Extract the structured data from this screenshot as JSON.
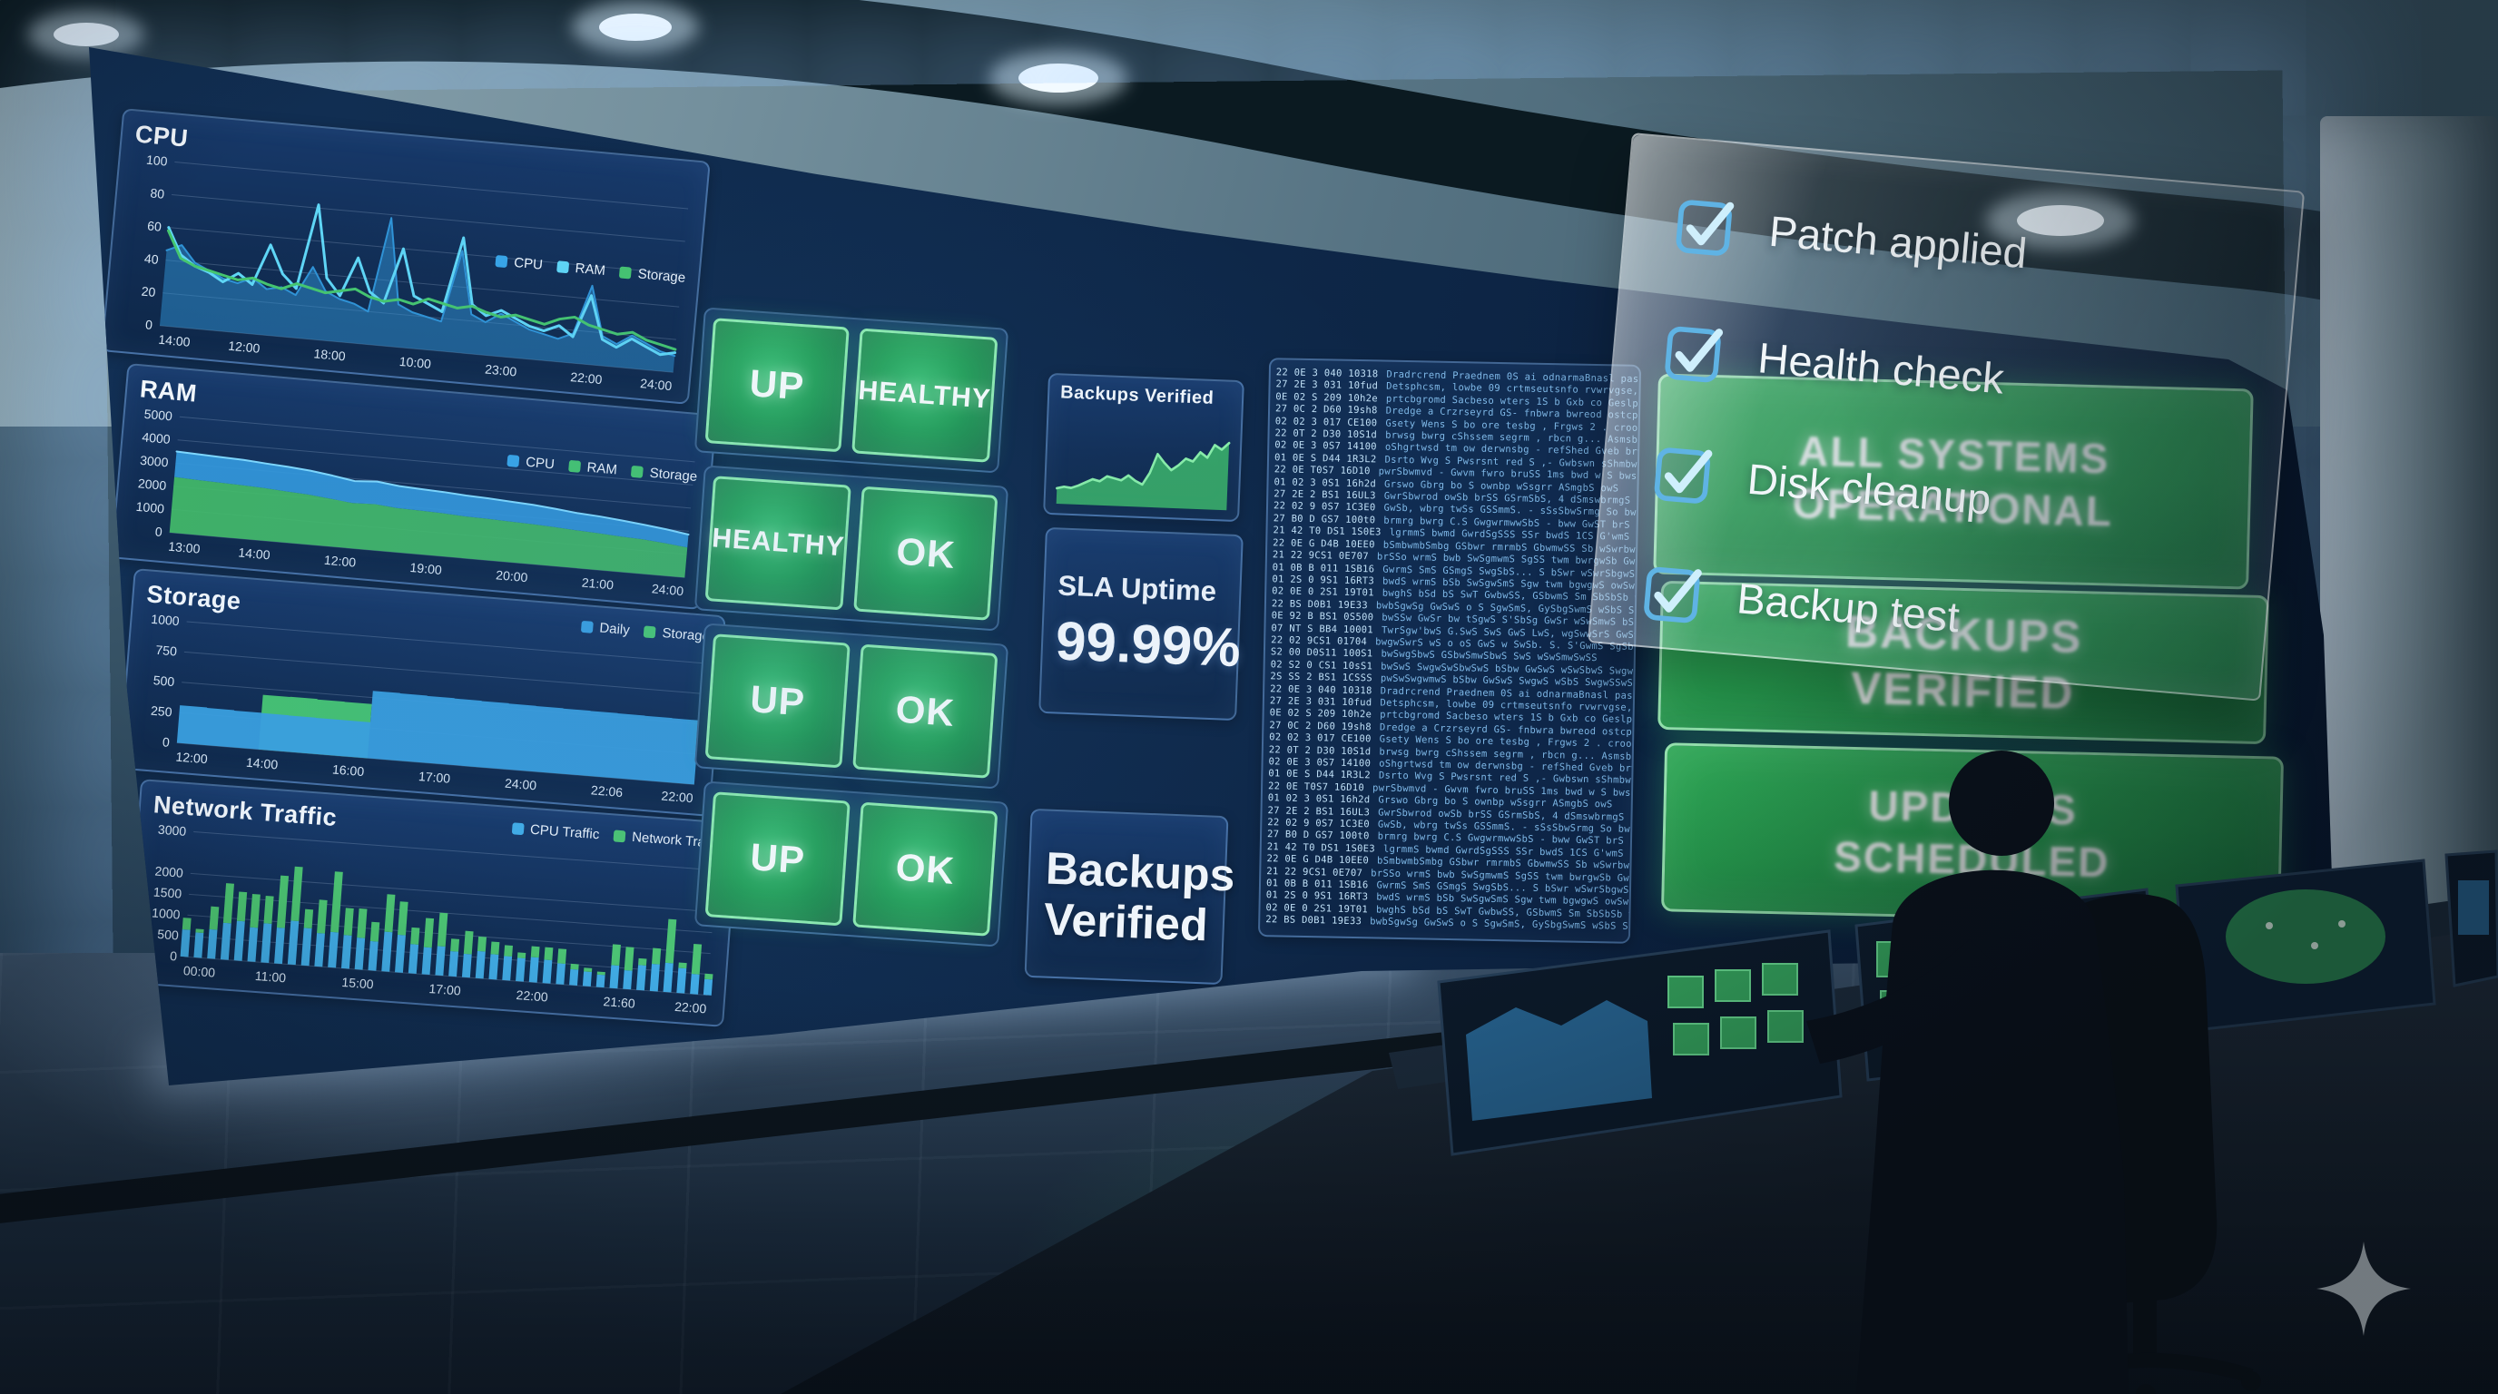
{
  "scene": {
    "description": "Network operations center with curved monitoring wall, checklist overlay, status banners, operator at control desk"
  },
  "status_tiles": {
    "rows": [
      [
        "UP",
        "HEALTHY"
      ],
      [
        "HEALTHY",
        "OK"
      ],
      [
        "UP",
        "OK"
      ],
      [
        "UP",
        "OK"
      ]
    ]
  },
  "info_panels": {
    "backups_spark_title": "Backups Verified",
    "sla_title": "SLA Uptime",
    "sla_value": "99.99%",
    "backups_large": "Backups Verified"
  },
  "checklist": {
    "items": [
      {
        "label": "Patch applied",
        "checked": true
      },
      {
        "label": "Health check",
        "checked": true
      },
      {
        "label": "Disk cleanup",
        "checked": true
      },
      {
        "label": "Backup test",
        "checked": true
      }
    ]
  },
  "banners": [
    {
      "text": "ALL SYSTEMS OPERATIONAL"
    },
    {
      "text": "BACKUPS VERIFIED"
    },
    {
      "text": "UPDATES SCHEDULED"
    }
  ],
  "log": {
    "lines": [
      {
        "t": "22 0E 3 040 10318",
        "m": "Dradrcrend Praednem 0S ai odnarmaBnasl pasdGlb g toun"
      },
      {
        "t": "27 2E 3 031 10fud",
        "m": "Detsphcsm, lowbe 09 crtmseutsnfo rvwrvgse, td"
      },
      {
        "t": "0E 02 S 209 10h2e",
        "m": "prtcbgromd Sacbeso wters 1S b Gxb co Geslpod rpe-mos o GBb mxl"
      },
      {
        "t": "27 0C 2 D60 19sh8",
        "m": "Dredge a Crzrseyrd GS- fnbwra bwreod ostcp Gwhwdg"
      },
      {
        "t": "02 02 3 017 CE100",
        "m": "Gsety Wens S bo ore tesbg , Frgws 2 . croogwos edsrgr bwrgrsre"
      },
      {
        "t": "22 0T 2 D30 10S1d",
        "m": "brwsg bwrg cShssem segrm , rbcn g... Asmsbvgsbgs hwrg"
      },
      {
        "t": "02 0E 3 0S7 14100",
        "m": "oShgrtwsd tm ow derwnsbg - refShed Gveb brwbrs gwvsb 1 Grgwqrm"
      },
      {
        "t": "01 0E S D44 1R3L2",
        "m": "Dsrto Wvg S Pwsrsnt red S ,- Gwbswn sShmbwro owsbgo dms twrvwS"
      },
      {
        "t": "22 0E T0S7 16D10",
        "m": "pwrSbwmvd - Gwvm fwro bruSS 1ms bwd w S bws sSsgSo T bwgwsbs"
      },
      {
        "t": "01 02 3 0S1 16h2d",
        "m": "Grswo Gbrg bo S ownbp wSsgrr  ASmgbS owS"
      },
      {
        "t": "27 2E 2 BS1 16UL3",
        "m": "GwrSbwrod owSb brSS GSrmSbS, 4 dSmswbrmgS pSo bo bwrgwmbS..."
      },
      {
        "t": "22 02 9 0S7 1C3E0",
        "m": "GwSb, wbrg twSs GSSmmS. - sSsSbwSrmg So bwS GwrgS GmmmwSw o tSo"
      },
      {
        "t": "27 B0 D GS7 100t0",
        "m": "brmrg bwrg C.S GwgwrmwwSbS - bww GwST brS bS"
      },
      {
        "t": "21 42 T0 DS1 1S0E3",
        "m": "lgrmmS bwmd GwrdSgSSS SSr bwdS 1CS G'wmS GwbSSy GwmSgrmwm Sr"
      },
      {
        "t": "22 0E G D4B 10EE0",
        "m": "bSmbwmbSmbg GSbwr rmrmbS GbwmwSS Sb wSwrbwgS SrSbS GwgSrmwS"
      },
      {
        "t": "21 22 9CS1 0E707",
        "m": "brSSo wrmS bwb SwSgmwmS SgSS twm bwrgwSb GwSSwS SmwSwgSgwS SwbS"
      },
      {
        "t": "01 0B B 011 1SB16",
        "m": "GwrmS SmS GSmgS SwgSbS... S bSwr wSwrSbgwS"
      },
      {
        "t": "01 2S 0 9S1 16RT3",
        "m": "bwdS wrmS bSb SwSgwSmS Sgw twm bgwgwS owSwS SmwgSwSl SwS bwm, 10"
      },
      {
        "t": "02 0E 0 2S1 19T01",
        "m": "bwghS bSd bS SwT GwbwSS, GSbwmS Sm SbSbSb wSwSb S0S wSwSmwwSb..."
      },
      {
        "t": "22 BS D0B1 19E33",
        "m": "bwbSgwSg GwSwS o S SgwSmS, GySbgSwmS wSbS S..."
      },
      {
        "t": "0E 92 B BS1 0S500",
        "m": "bwSSw GwSr bw tSgwS S'SbSg GwSr wSwSmwS bS bS SwSbwSw bS SwS SSS-0.S.G"
      },
      {
        "t": "07 NT S BB4 10001",
        "m": "TwrSgw'bwS G.SwS SwS GwS LwS, wgSwwSrS GwSwS wSbwr SgSrgwSwgwS"
      },
      {
        "t": "22 02 9CS1 01704",
        "m": "bwgwSwrS wS o oS GwS w SwSb. S. S'GwmS SgSb.S"
      },
      {
        "t": "S2 00 D0S11 100S1",
        "m": "bwSwgSbwS GSbwSmwSbwS SwS wSwSmwSwSS"
      },
      {
        "t": "02 S2 0 CS1 10sS1",
        "m": "bwSwS SwgwSwSbwSwS bSbw GwSwS wSwSbwS SwgwS"
      },
      {
        "t": "2S SS 2 BS1 1CSSS",
        "m": "pwSwSwgwmwS bSbw GwSwS SwgwS wSbS SwgwSSwS..."
      }
    ]
  },
  "colors": {
    "chart_blue": "#38a5e8",
    "chart_cyan": "#5fd6f6",
    "chart_green": "#45c56f",
    "tile_green": "#27a35a",
    "banner_green": "#28a250",
    "check_blue": "#5fb3e4",
    "log_blue": "#7fb9e8"
  },
  "chart_data": [
    {
      "id": "cpu",
      "type": "line",
      "title": "CPU",
      "ylim": [
        0,
        100
      ],
      "yticks": [
        100,
        80,
        60,
        40,
        20,
        0
      ],
      "x_labels": [
        "14:00",
        "12:00",
        "18:00",
        "10:00",
        "23:00",
        "22:00",
        "24:00"
      ],
      "legend": [
        {
          "label": "CPU",
          "color": "#38a5e8"
        },
        {
          "label": "RAM",
          "color": "#5fd6f6"
        },
        {
          "label": "Storage",
          "color": "#45c56f"
        }
      ],
      "series": [
        {
          "name": "CPU",
          "color": "#2f93d6",
          "mode": "area",
          "values": [
            46,
            50,
            40,
            36,
            32,
            30,
            34,
            28,
            30,
            26,
            44,
            30,
            26,
            24,
            20,
            78,
            26,
            22,
            20,
            18,
            62,
            24,
            20,
            26,
            22,
            18,
            16,
            14,
            18,
            48,
            18,
            14,
            20,
            16,
            12,
            10
          ]
        },
        {
          "name": "RAM",
          "color": "#5fd6f6",
          "mode": "line",
          "values": [
            60,
            44,
            38,
            35,
            30,
            36,
            30,
            55,
            38,
            30,
            82,
            38,
            28,
            52,
            32,
            26,
            60,
            32,
            28,
            24,
            70,
            30,
            24,
            28,
            24,
            20,
            18,
            22,
            16,
            42,
            16,
            12,
            18,
            14,
            10,
            12
          ]
        },
        {
          "name": "Storage",
          "color": "#45c56f",
          "mode": "line",
          "values": [
            58,
            42,
            38,
            36,
            34,
            32,
            34,
            31,
            29,
            33,
            31,
            29,
            31,
            33,
            29,
            27,
            29,
            27,
            31,
            29,
            27,
            29,
            26,
            24,
            26,
            24,
            22,
            26,
            28,
            24,
            22,
            20,
            22,
            18,
            16,
            14
          ]
        }
      ]
    },
    {
      "id": "ram",
      "type": "stacked-area",
      "title": "RAM",
      "ylim": [
        0,
        5000
      ],
      "yticks": [
        5000,
        4000,
        3000,
        2000,
        1000,
        0
      ],
      "x_labels": [
        "13:00",
        "14:00",
        "12:00",
        "19:00",
        "20:00",
        "21:00",
        "24:00"
      ],
      "legend": [
        {
          "label": "CPU",
          "color": "#38a5e8"
        },
        {
          "label": "RAM",
          "color": "#45c56f"
        },
        {
          "label": "Storage",
          "color": "#45c56f"
        }
      ],
      "series": [
        {
          "name": "RAM",
          "color": "#43bd68",
          "values": [
            2400,
            2360,
            2330,
            2300,
            2260,
            2200,
            2150,
            2050,
            1950,
            1990,
            1900,
            1880,
            1850,
            1800,
            1780,
            1750,
            1720,
            1680,
            1620,
            1580,
            1520,
            1480,
            1400,
            1300
          ]
        },
        {
          "name": "CPU",
          "color": "#3399dd",
          "values": [
            3500,
            3460,
            3420,
            3390,
            3320,
            3260,
            3180,
            3050,
            2900,
            2960,
            2850,
            2800,
            2760,
            2700,
            2660,
            2600,
            2550,
            2460,
            2360,
            2300,
            2210,
            2110,
            2000,
            1860
          ]
        }
      ]
    },
    {
      "id": "storage",
      "type": "step-area",
      "title": "Storage",
      "ylim": [
        0,
        1000
      ],
      "yticks": [
        1000,
        750,
        500,
        250,
        0
      ],
      "x_labels": [
        "12:00",
        "14:00",
        "16:00",
        "17:00",
        "24:00",
        "22:06",
        "22:00"
      ],
      "legend": [
        {
          "label": "Daily",
          "color": "#3aa0e0"
        },
        {
          "label": "Storage",
          "color": "#49c973"
        }
      ],
      "series": [
        {
          "name": "Storage",
          "color": "#49c973",
          "opacity": 0.95,
          "values": [
            0,
            0,
            0,
            450,
            452,
            448,
            446,
            0,
            0,
            0,
            0,
            0,
            0,
            0,
            0,
            0,
            0,
            0,
            0,
            0
          ]
        },
        {
          "name": "Daily",
          "color": "#3aa0e0",
          "opacity": 0.95,
          "values": [
            310,
            306,
            302,
            300,
            298,
            296,
            296,
            555,
            552,
            549,
            546,
            543,
            540,
            538,
            536,
            534,
            532,
            530,
            528,
            526
          ]
        }
      ]
    },
    {
      "id": "net",
      "type": "stacked-bar",
      "title": "Network Traffic",
      "ylim": [
        0,
        3000
      ],
      "yticks": [
        3000,
        2000,
        1500,
        1000,
        500,
        0
      ],
      "x_labels": [
        "00:00",
        "11:00",
        "15:00",
        "17:00",
        "22:00",
        "21:60",
        "22:00"
      ],
      "legend": [
        {
          "label": "CPU Traffic",
          "color": "#41aee8"
        },
        {
          "label": "Network Traffic",
          "color": "#4cc671"
        }
      ],
      "series": [
        {
          "name": "CPU Traffic",
          "color": "#41aee8",
          "values": [
            650,
            600,
            700,
            880,
            950,
            820,
            940,
            860,
            1050,
            900,
            800,
            850,
            800,
            760,
            700,
            950,
            900,
            700,
            650,
            700,
            600,
            560,
            650,
            600,
            580,
            560,
            600,
            560,
            500,
            380,
            350,
            300,
            550,
            450,
            600,
            650,
            700,
            600,
            480,
            380
          ]
        },
        {
          "name": "Network Traffic",
          "color": "#4cc671",
          "values": [
            280,
            90,
            550,
            950,
            700,
            800,
            660,
            1250,
            1300,
            450,
            800,
            1450,
            650,
            700,
            460,
            900,
            800,
            400,
            700,
            800,
            300,
            550,
            350,
            300,
            260,
            130,
            260,
            300,
            350,
            130,
            90,
            70,
            500,
            560,
            160,
            380,
            1050,
            130,
            720,
            130
          ]
        }
      ]
    },
    {
      "id": "spark",
      "type": "area",
      "title": "Backups Verified",
      "ylim": [
        0,
        100
      ],
      "yticks": null,
      "x_labels": null,
      "legend": null,
      "series": [
        {
          "name": "Backups",
          "color": "#3ec06a",
          "values": [
            18,
            20,
            19,
            22,
            26,
            30,
            28,
            34,
            32,
            30,
            36,
            30,
            26,
            40,
            62,
            52,
            44,
            50,
            58,
            55,
            66,
            60,
            75,
            70,
            78
          ]
        }
      ]
    }
  ]
}
